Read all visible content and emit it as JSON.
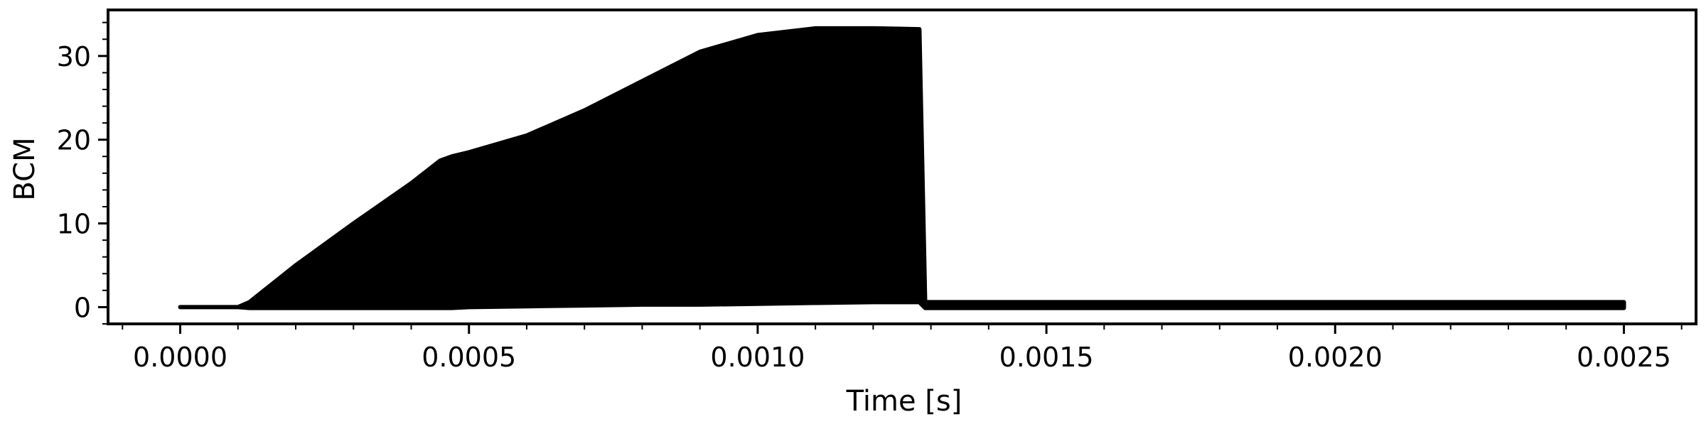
{
  "chart_data": {
    "type": "area",
    "title": "",
    "xlabel": "Time [s]",
    "ylabel": "BCM",
    "xlim": [
      -0.000125,
      0.002625
    ],
    "ylim": [
      -2,
      35.5
    ],
    "x_ticks": [
      0.0,
      0.0005,
      0.001,
      0.0015,
      0.002,
      0.0025
    ],
    "x_tick_labels": [
      "0.0000",
      "0.0005",
      "0.0010",
      "0.0015",
      "0.0020",
      "0.0025"
    ],
    "y_ticks": [
      0,
      10,
      20,
      30
    ],
    "y_tick_labels": [
      "0",
      "10",
      "20",
      "30"
    ],
    "grid": false,
    "legend": "none",
    "colors": {
      "signal": "#000000",
      "background": "#ffffff",
      "axes": "#000000"
    },
    "series": [
      {
        "description_kind": "oscillation-envelope",
        "x": [
          0.0,
          0.0001,
          0.00012,
          0.0002,
          0.0003,
          0.0004,
          0.00045,
          0.00047,
          0.0005,
          0.0006,
          0.0007,
          0.0008,
          0.0009,
          0.001,
          0.0011,
          0.0012,
          0.00128,
          0.00129,
          0.0015,
          0.002,
          0.0025
        ],
        "upper": [
          0.0,
          0.0,
          0.6,
          5.0,
          10.0,
          14.8,
          17.5,
          18.0,
          18.5,
          20.5,
          23.5,
          27.0,
          30.5,
          32.5,
          33.3,
          33.3,
          33.2,
          0.6,
          0.6,
          0.6,
          0.6
        ],
        "lower": [
          0.0,
          0.0,
          -0.1,
          -0.1,
          -0.1,
          -0.1,
          -0.1,
          -0.1,
          0.0,
          0.1,
          0.2,
          0.3,
          0.3,
          0.4,
          0.5,
          0.6,
          0.6,
          -0.1,
          -0.1,
          -0.1,
          -0.1
        ]
      }
    ]
  }
}
